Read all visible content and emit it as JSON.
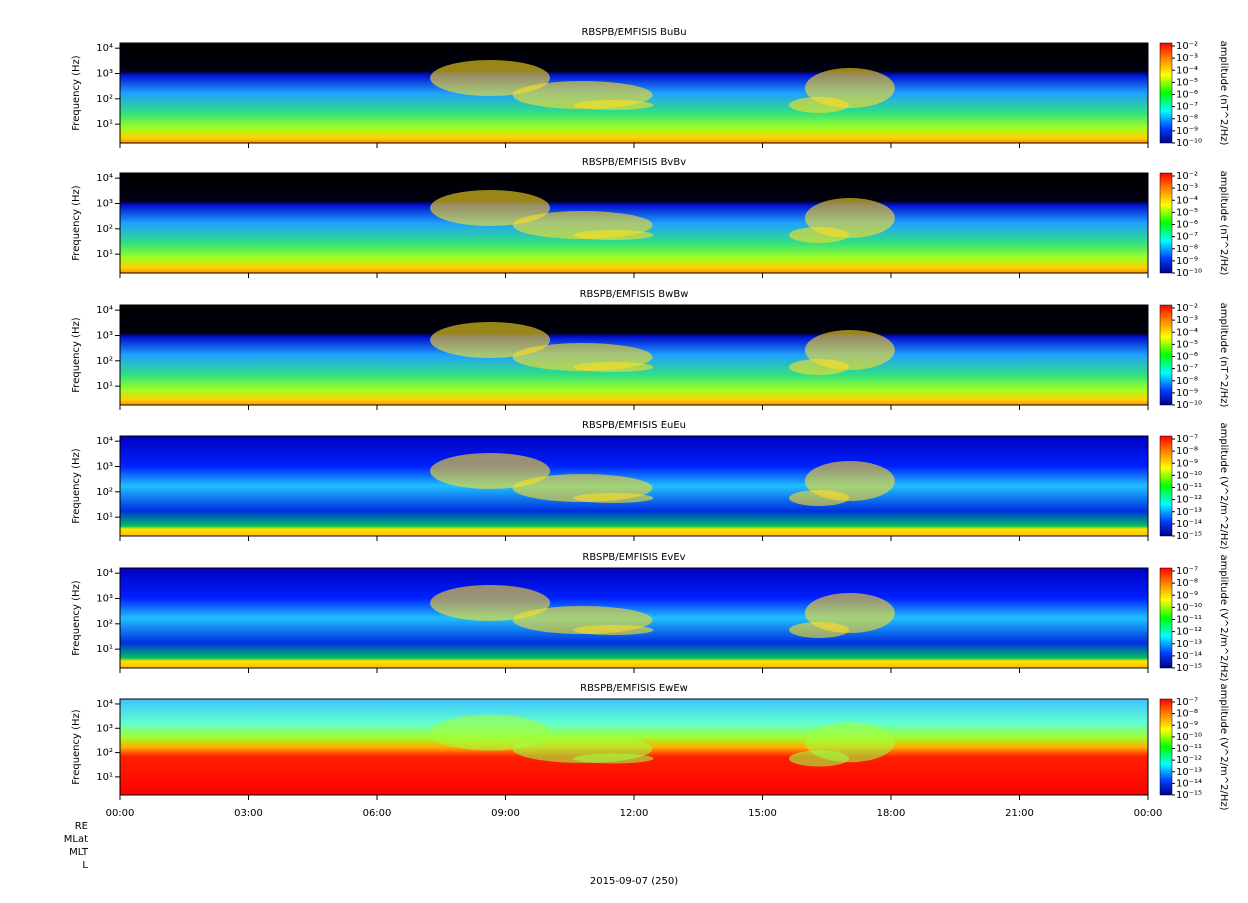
{
  "chart_data": [
    {
      "type": "spectrogram",
      "title": "RBSPB/EMFISIS  BuBu",
      "y_label": "Frequency (Hz)",
      "log_y": true,
      "ylim": [
        1.8,
        16000
      ],
      "yticks": [
        {
          "value": 10,
          "label": "10¹"
        },
        {
          "value": 100,
          "label": "10²"
        },
        {
          "value": 1000,
          "label": "10³"
        },
        {
          "value": 10000,
          "label": "10⁴"
        }
      ],
      "colorbar_label": "amplitude (nT^2/Hz)",
      "clim": [
        1e-10,
        0.01
      ],
      "cticks": [
        {
          "value": 0.01,
          "label": "10⁻²"
        },
        {
          "value": 0.001,
          "label": "10⁻³"
        },
        {
          "value": 0.0001,
          "label": "10⁻⁴"
        },
        {
          "value": 1e-05,
          "label": "10⁻⁵"
        },
        {
          "value": 1e-06,
          "label": "10⁻⁶"
        },
        {
          "value": 1e-07,
          "label": "10⁻⁷"
        },
        {
          "value": 1e-08,
          "label": "10⁻⁸"
        },
        {
          "value": 1e-09,
          "label": "10⁻⁹"
        },
        {
          "value": 1e-10,
          "label": "10⁻¹⁰"
        }
      ]
    },
    {
      "type": "spectrogram",
      "title": "RBSPB/EMFISIS  BvBv",
      "y_label": "Frequency (Hz)",
      "log_y": true,
      "ylim": [
        1.8,
        16000
      ],
      "yticks": [
        {
          "value": 10,
          "label": "10¹"
        },
        {
          "value": 100,
          "label": "10²"
        },
        {
          "value": 1000,
          "label": "10³"
        },
        {
          "value": 10000,
          "label": "10⁴"
        }
      ],
      "colorbar_label": "amplitude (nT^2/Hz)",
      "clim": [
        1e-10,
        0.01
      ],
      "cticks": [
        {
          "value": 0.01,
          "label": "10⁻²"
        },
        {
          "value": 0.001,
          "label": "10⁻³"
        },
        {
          "value": 0.0001,
          "label": "10⁻⁴"
        },
        {
          "value": 1e-05,
          "label": "10⁻⁵"
        },
        {
          "value": 1e-06,
          "label": "10⁻⁶"
        },
        {
          "value": 1e-07,
          "label": "10⁻⁷"
        },
        {
          "value": 1e-08,
          "label": "10⁻⁸"
        },
        {
          "value": 1e-09,
          "label": "10⁻⁹"
        },
        {
          "value": 1e-10,
          "label": "10⁻¹⁰"
        }
      ]
    },
    {
      "type": "spectrogram",
      "title": "RBSPB/EMFISIS  BwBw",
      "y_label": "Frequency (Hz)",
      "log_y": true,
      "ylim": [
        1.8,
        16000
      ],
      "yticks": [
        {
          "value": 10,
          "label": "10¹"
        },
        {
          "value": 100,
          "label": "10²"
        },
        {
          "value": 1000,
          "label": "10³"
        },
        {
          "value": 10000,
          "label": "10⁴"
        }
      ],
      "colorbar_label": "amplitude (nT^2/Hz)",
      "clim": [
        1e-10,
        0.01
      ],
      "cticks": [
        {
          "value": 0.01,
          "label": "10⁻²"
        },
        {
          "value": 0.001,
          "label": "10⁻³"
        },
        {
          "value": 0.0001,
          "label": "10⁻⁴"
        },
        {
          "value": 1e-05,
          "label": "10⁻⁵"
        },
        {
          "value": 1e-06,
          "label": "10⁻⁶"
        },
        {
          "value": 1e-07,
          "label": "10⁻⁷"
        },
        {
          "value": 1e-08,
          "label": "10⁻⁸"
        },
        {
          "value": 1e-09,
          "label": "10⁻⁹"
        },
        {
          "value": 1e-10,
          "label": "10⁻¹⁰"
        }
      ]
    },
    {
      "type": "spectrogram",
      "title": "RBSPB/EMFISIS  EuEu",
      "y_label": "Frequency (Hz)",
      "log_y": true,
      "ylim": [
        1.8,
        16000
      ],
      "yticks": [
        {
          "value": 10,
          "label": "10¹"
        },
        {
          "value": 100,
          "label": "10²"
        },
        {
          "value": 1000,
          "label": "10³"
        },
        {
          "value": 10000,
          "label": "10⁴"
        }
      ],
      "colorbar_label": "amplitude (V^2/m^2/Hz)",
      "clim": [
        1e-15,
        1e-07
      ],
      "cticks": [
        {
          "value": 1e-07,
          "label": "10⁻⁷"
        },
        {
          "value": 1e-08,
          "label": "10⁻⁸"
        },
        {
          "value": 1e-09,
          "label": "10⁻⁹"
        },
        {
          "value": 1e-10,
          "label": "10⁻¹⁰"
        },
        {
          "value": 1e-11,
          "label": "10⁻¹¹"
        },
        {
          "value": 1e-12,
          "label": "10⁻¹²"
        },
        {
          "value": 1e-13,
          "label": "10⁻¹³"
        },
        {
          "value": 1e-14,
          "label": "10⁻¹⁴"
        },
        {
          "value": 1e-15,
          "label": "10⁻¹⁵"
        }
      ]
    },
    {
      "type": "spectrogram",
      "title": "RBSPB/EMFISIS  EvEv",
      "y_label": "Frequency (Hz)",
      "log_y": true,
      "ylim": [
        1.8,
        16000
      ],
      "yticks": [
        {
          "value": 10,
          "label": "10¹"
        },
        {
          "value": 100,
          "label": "10²"
        },
        {
          "value": 1000,
          "label": "10³"
        },
        {
          "value": 10000,
          "label": "10⁴"
        }
      ],
      "colorbar_label": "amplitude (V^2/m^2/Hz)",
      "clim": [
        1e-15,
        1e-07
      ],
      "cticks": [
        {
          "value": 1e-07,
          "label": "10⁻⁷"
        },
        {
          "value": 1e-08,
          "label": "10⁻⁸"
        },
        {
          "value": 1e-09,
          "label": "10⁻⁹"
        },
        {
          "value": 1e-10,
          "label": "10⁻¹⁰"
        },
        {
          "value": 1e-11,
          "label": "10⁻¹¹"
        },
        {
          "value": 1e-12,
          "label": "10⁻¹²"
        },
        {
          "value": 1e-13,
          "label": "10⁻¹³"
        },
        {
          "value": 1e-14,
          "label": "10⁻¹⁴"
        },
        {
          "value": 1e-15,
          "label": "10⁻¹⁵"
        }
      ]
    },
    {
      "type": "spectrogram",
      "title": "RBSPB/EMFISIS  EwEw",
      "y_label": "Frequency (Hz)",
      "log_y": true,
      "ylim": [
        1.8,
        16000
      ],
      "yticks": [
        {
          "value": 10,
          "label": "10¹"
        },
        {
          "value": 100,
          "label": "10²"
        },
        {
          "value": 1000,
          "label": "10³"
        },
        {
          "value": 10000,
          "label": "10⁴"
        }
      ],
      "colorbar_label": "amplitude (V^2/m^2/Hz)",
      "clim": [
        1e-15,
        1e-07
      ],
      "cticks": [
        {
          "value": 1e-07,
          "label": "10⁻⁷"
        },
        {
          "value": 1e-08,
          "label": "10⁻⁸"
        },
        {
          "value": 1e-09,
          "label": "10⁻⁹"
        },
        {
          "value": 1e-10,
          "label": "10⁻¹⁰"
        },
        {
          "value": 1e-11,
          "label": "10⁻¹¹"
        },
        {
          "value": 1e-12,
          "label": "10⁻¹²"
        },
        {
          "value": 1e-13,
          "label": "10⁻¹³"
        },
        {
          "value": 1e-14,
          "label": "10⁻¹⁴"
        },
        {
          "value": 1e-15,
          "label": "10⁻¹⁵"
        }
      ],
      "xlim": [
        0,
        24
      ],
      "xticks": [
        {
          "value": 0,
          "label": "00:00"
        },
        {
          "value": 3,
          "label": "03:00"
        },
        {
          "value": 6,
          "label": "06:00"
        },
        {
          "value": 9,
          "label": "09:00"
        },
        {
          "value": 12,
          "label": "12:00"
        },
        {
          "value": 15,
          "label": "15:00"
        },
        {
          "value": 18,
          "label": "18:00"
        },
        {
          "value": 21,
          "label": "21:00"
        },
        {
          "value": 24,
          "label": "00:00"
        }
      ],
      "extra_axis_labels": [
        "RE",
        "MLat",
        "MLT",
        "L"
      ],
      "x_label": "2015-09-07 (250)"
    }
  ]
}
